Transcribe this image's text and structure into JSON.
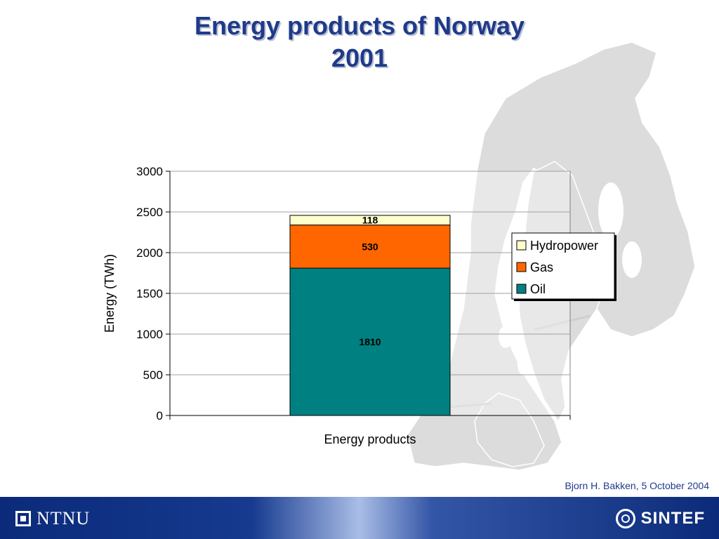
{
  "slide": {
    "title_line1": "Energy products of Norway",
    "title_line2": "2001",
    "credit": "Bjorn H. Bakken, 5 October 2004",
    "logo_left": "NTNU",
    "logo_right": "SINTEF"
  },
  "chart_data": {
    "type": "bar",
    "stacked": true,
    "categories": [
      "Energy products"
    ],
    "series": [
      {
        "name": "Oil",
        "values": [
          1810
        ],
        "color": "#008080"
      },
      {
        "name": "Gas",
        "values": [
          530
        ],
        "color": "#ff6600"
      },
      {
        "name": "Hydropower",
        "values": [
          118
        ],
        "color": "#ffffcc"
      }
    ],
    "xlabel": "Energy products",
    "ylabel": "Energy (TWh)",
    "ylim": [
      0,
      3000
    ],
    "yticks": [
      0,
      500,
      1000,
      1500,
      2000,
      2500,
      3000
    ],
    "grid": true,
    "legend": "right",
    "legend_order": [
      "Hydropower",
      "Gas",
      "Oil"
    ]
  },
  "colors": {
    "title": "#1f3a8a",
    "footer_bar": "#0b2a7a",
    "map": "#d9d9d9"
  }
}
